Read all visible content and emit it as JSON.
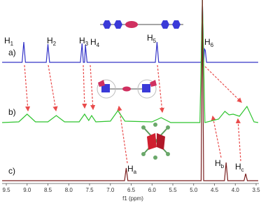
{
  "chart_data": {
    "type": "line",
    "x_label": "f1 (ppm)",
    "xlim": [
      9.6,
      3.45
    ],
    "ylim": [
      0,
      262
    ],
    "xticks": [
      9.5,
      {
        "value": 9,
        "label": "9.0"
      },
      8.5,
      {
        "value": 8,
        "label": "8.0"
      },
      7.5,
      {
        "value": 7,
        "label": "7.0"
      },
      6.5,
      {
        "value": 6,
        "label": "6.0"
      },
      5.5,
      {
        "value": 5,
        "label": "5.0"
      },
      4.5,
      {
        "value": 4,
        "label": "4.0"
      },
      3.5
    ],
    "series": [
      {
        "name": "a)",
        "color": "#3434c8",
        "x": [
          9.6,
          9.12,
          9.08,
          9.04,
          8.54,
          8.5,
          8.46,
          7.72,
          7.68,
          7.65,
          7.62,
          7.6,
          7.56,
          5.92,
          5.88,
          5.84,
          4.82,
          4.79,
          4.76,
          4.74,
          4.72,
          4.69,
          3.45
        ],
        "values": [
          173,
          173,
          202,
          173,
          173,
          199,
          173,
          173,
          200,
          173,
          173,
          198,
          173,
          173,
          202,
          173,
          173,
          262,
          173,
          192,
          190,
          173,
          173
        ]
      },
      {
        "name": "b)",
        "color": "#2fc42f",
        "x": [
          9.6,
          9.2,
          9.0,
          8.8,
          8.5,
          8.3,
          8.1,
          7.75,
          7.62,
          7.52,
          7.45,
          7.35,
          7.0,
          6.82,
          6.65,
          6.0,
          5.78,
          5.55,
          4.85,
          4.79,
          4.73,
          4.4,
          4.25,
          4.15,
          4.05,
          3.9,
          3.72,
          3.55,
          3.45
        ],
        "values": [
          87,
          88,
          99,
          88,
          88,
          97,
          88,
          88,
          99,
          90,
          97,
          88,
          89,
          104,
          89,
          88,
          94,
          87,
          87,
          262,
          87,
          92,
          103,
          98,
          99,
          96,
          110,
          88,
          87
        ]
      },
      {
        "name": "c)",
        "color": "#7a1f1f",
        "x": [
          9.6,
          6.66,
          6.62,
          6.58,
          4.82,
          4.79,
          4.76,
          4.26,
          4.22,
          4.18,
          3.79,
          3.75,
          3.71,
          3.45
        ],
        "values": [
          4,
          4,
          22,
          4,
          4,
          262,
          4,
          4,
          30,
          4,
          4,
          14,
          4,
          4
        ]
      }
    ],
    "annotations": [
      {
        "text": "H",
        "sub": "1"
      },
      {
        "text": "H",
        "sub": "2"
      },
      {
        "text": "H",
        "sub": "3"
      },
      {
        "text": "H",
        "sub": "4"
      },
      {
        "text": "H",
        "sub": "5"
      },
      {
        "text": "H",
        "sub": "6"
      },
      {
        "text": "H",
        "sub": "a"
      },
      {
        "text": "H",
        "sub": "b"
      },
      {
        "text": "H",
        "sub": "c"
      }
    ]
  }
}
